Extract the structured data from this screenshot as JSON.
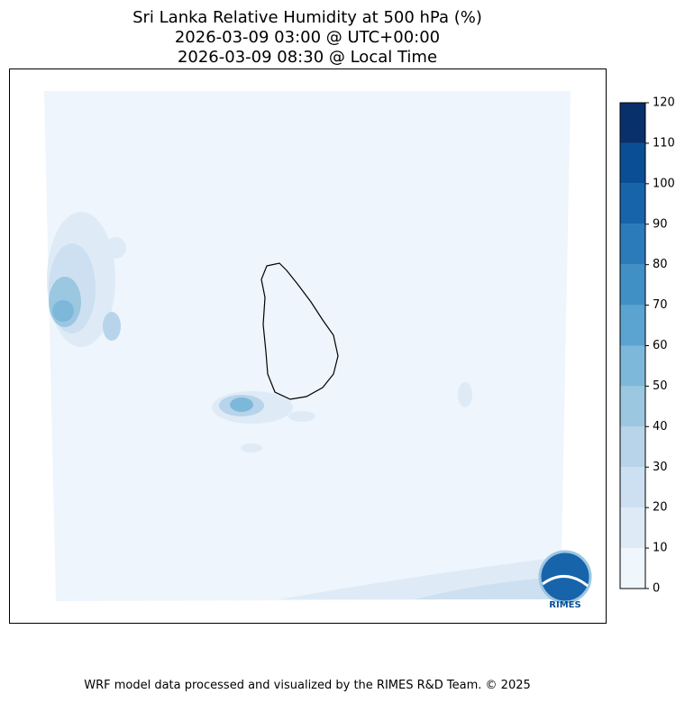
{
  "title": [
    "Sri Lanka Relative Humidity at 500 hPa (%)",
    "2026-03-09 03:00 @ UTC+00:00",
    "2026-03-09 08:30 @ Local Time"
  ],
  "colorbar": {
    "lim": [
      0,
      120
    ],
    "ticks": [
      0,
      10,
      20,
      30,
      40,
      50,
      60,
      70,
      80,
      90,
      100,
      110,
      120
    ],
    "colors": [
      "#eff6fc",
      "#deebf7",
      "#cde0f1",
      "#b7d4ea",
      "#9bc7e0",
      "#7db8da",
      "#5ba3d0",
      "#4190c5",
      "#2b7bba",
      "#1764ab",
      "#0a4f95",
      "#08306b"
    ]
  },
  "logo": "RIMES",
  "footer": "WRF model data processed and visualized by the RIMES R&D Team. © 2025"
}
